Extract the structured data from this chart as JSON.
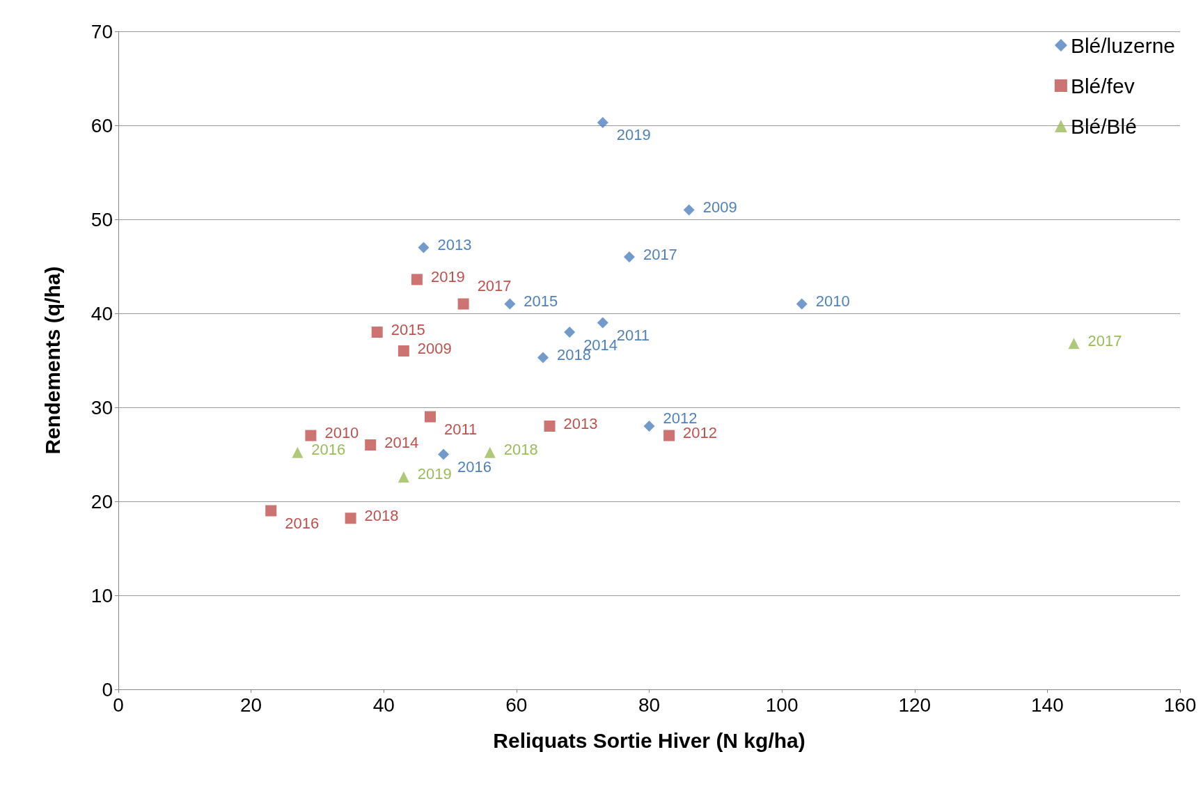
{
  "chart_data": {
    "type": "scatter",
    "xlabel": "Reliquats Sortie Hiver (N kg/ha)",
    "ylabel": "Rendements (q/ha)",
    "xlim": [
      0,
      160
    ],
    "xticks": [
      0,
      20,
      40,
      60,
      80,
      100,
      120,
      140,
      160
    ],
    "ylim": [
      0,
      70
    ],
    "yticks": [
      0,
      10,
      20,
      30,
      40,
      50,
      60,
      70
    ],
    "grid": "y",
    "legend": "top right",
    "series": [
      {
        "name": "Blé/luzerne",
        "color": "#4f81bd",
        "marker": "diamond",
        "x": [
          73,
          86,
          46,
          77,
          59,
          103,
          73,
          68,
          64,
          80,
          49
        ],
        "values": [
          60.3,
          51,
          47,
          46,
          41,
          41,
          39,
          38,
          35.3,
          28,
          25
        ]
      },
      {
        "name": "Blé/fev",
        "color": "#c0504d",
        "marker": "square",
        "x": [
          45,
          52,
          39,
          43,
          47,
          65,
          29,
          38,
          83,
          23,
          35
        ],
        "values": [
          43.6,
          41,
          38,
          36,
          29,
          28,
          27,
          26,
          27,
          19,
          18.2
        ]
      },
      {
        "name": "Blé/Blé",
        "color": "#9bbb59",
        "marker": "triangle",
        "x": [
          27,
          56,
          43,
          144
        ],
        "values": [
          25.2,
          25.2,
          22.6,
          36.8
        ]
      }
    ],
    "annotations": [
      {
        "text": "2019",
        "x": 73,
        "y": 60.3
      },
      {
        "text": "2009",
        "x": 86,
        "y": 51
      },
      {
        "text": "2013",
        "x": 46,
        "y": 47
      },
      {
        "text": "2017",
        "x": 77,
        "y": 46
      },
      {
        "text": "2015",
        "x": 59,
        "y": 41
      },
      {
        "text": "2010",
        "x": 103,
        "y": 41
      },
      {
        "text": "2011",
        "x": 73,
        "y": 39
      },
      {
        "text": "2014",
        "x": 68,
        "y": 38
      },
      {
        "text": "2018",
        "x": 64,
        "y": 35.3
      },
      {
        "text": "2012",
        "x": 80,
        "y": 28
      },
      {
        "text": "2016",
        "x": 49,
        "y": 25
      },
      {
        "text": "2019",
        "x": 45,
        "y": 43.6
      },
      {
        "text": "2017",
        "x": 52,
        "y": 41
      },
      {
        "text": "2015",
        "x": 39,
        "y": 38
      },
      {
        "text": "2009",
        "x": 43,
        "y": 36
      },
      {
        "text": "2011",
        "x": 47,
        "y": 29
      },
      {
        "text": "2013",
        "x": 65,
        "y": 28
      },
      {
        "text": "2010",
        "x": 29,
        "y": 27
      },
      {
        "text": "2014",
        "x": 38,
        "y": 26
      },
      {
        "text": "2012",
        "x": 83,
        "y": 27
      },
      {
        "text": "2016",
        "x": 23,
        "y": 19
      },
      {
        "text": "2018",
        "x": 35,
        "y": 18.2
      },
      {
        "text": "2016",
        "x": 27,
        "y": 25.2
      },
      {
        "text": "2018",
        "x": 56,
        "y": 25.2
      },
      {
        "text": "2019",
        "x": 43,
        "y": 22.6
      },
      {
        "text": "2017",
        "x": 144,
        "y": 36.8
      }
    ]
  }
}
